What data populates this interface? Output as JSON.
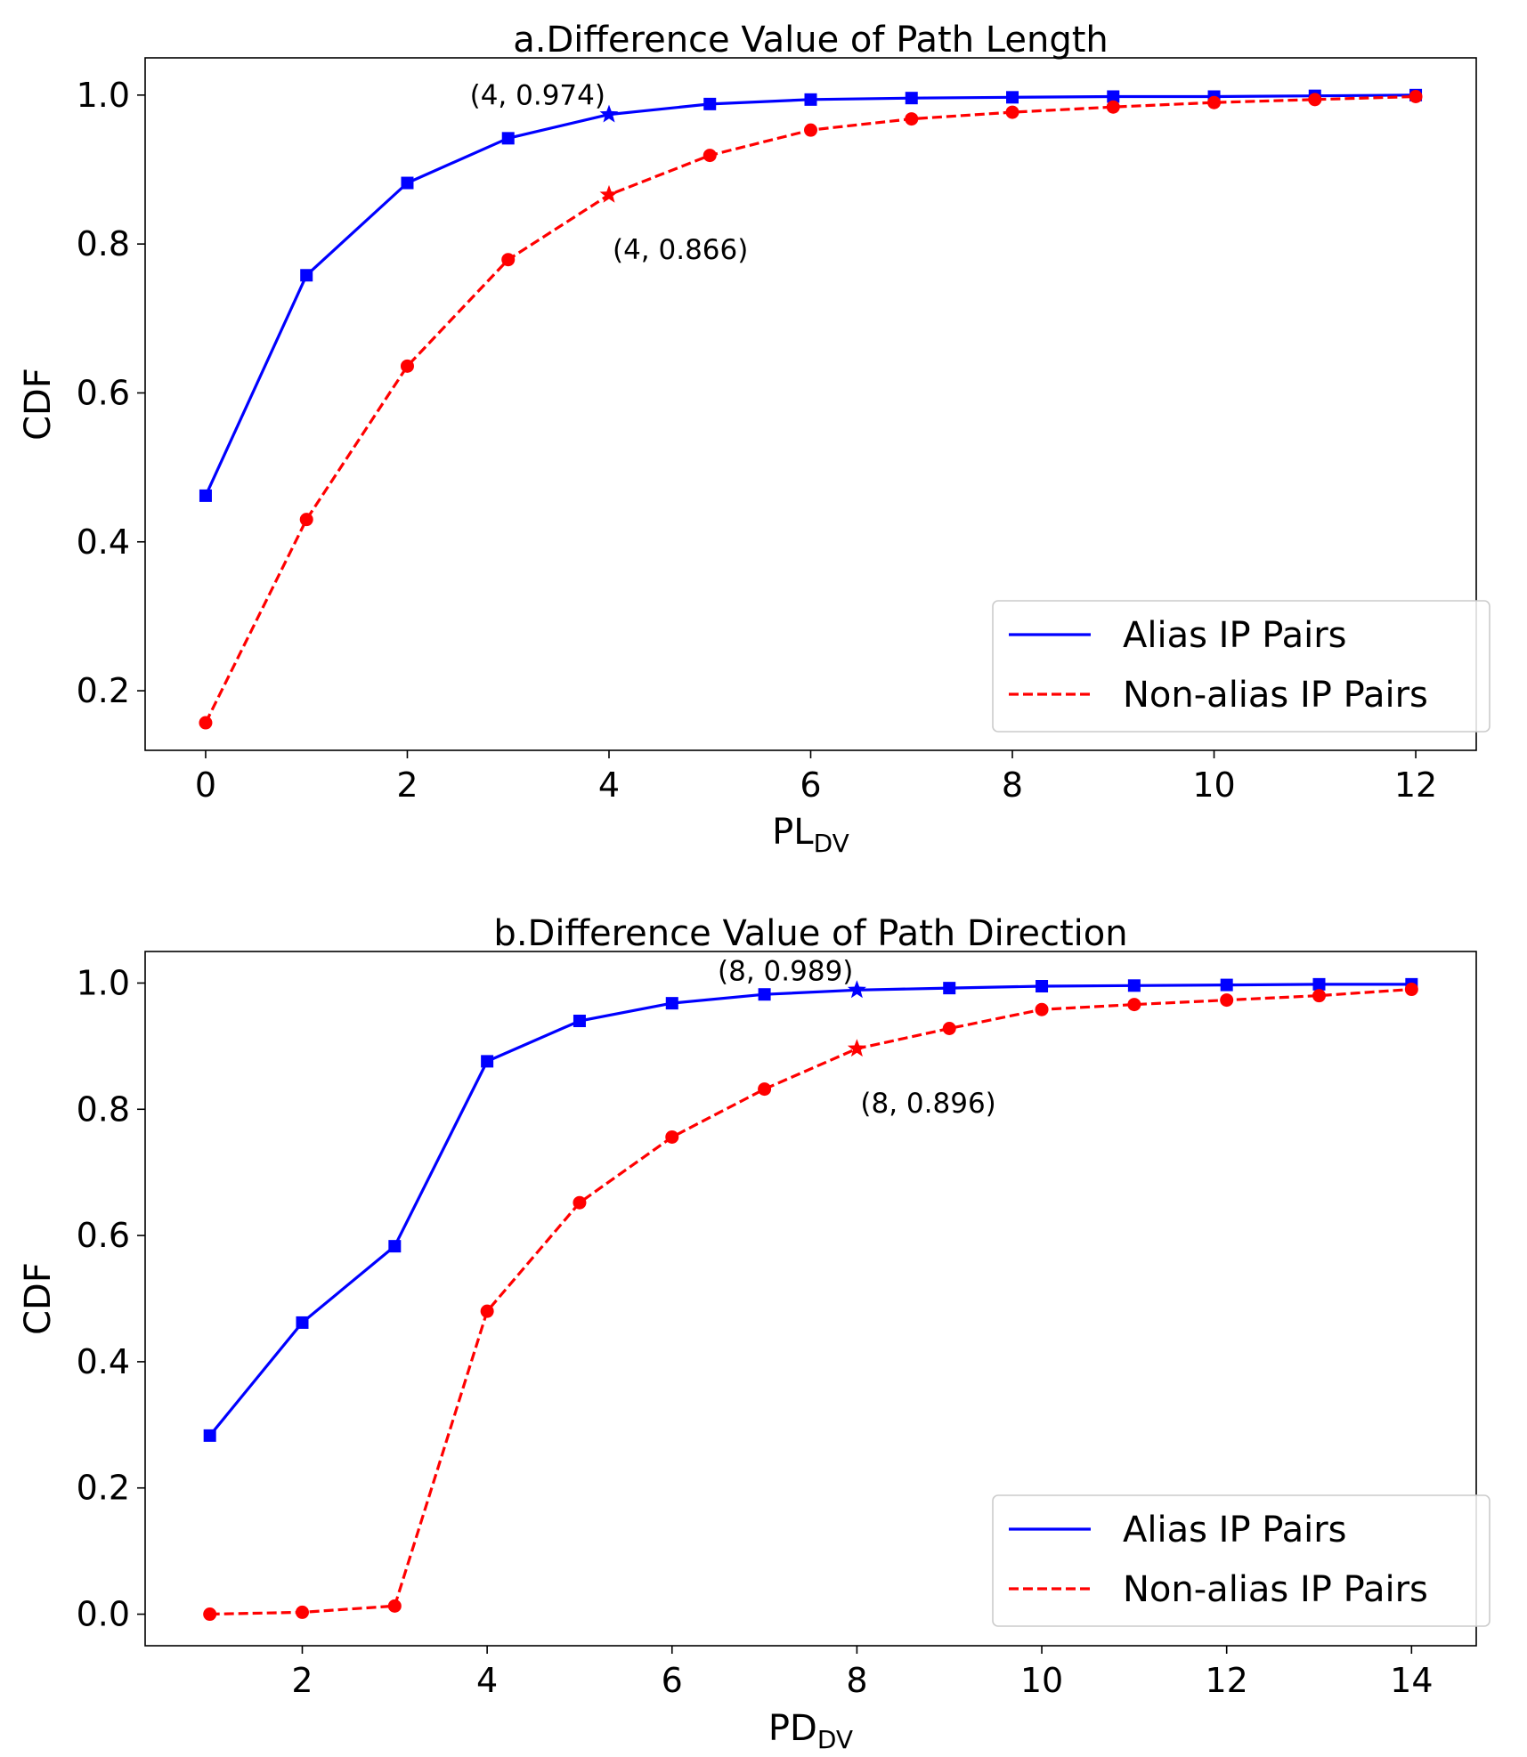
{
  "chart_data": [
    {
      "type": "line",
      "title": "a.Difference Value of Path Length",
      "xlabel": "PL",
      "xlabel_sub": "DV",
      "ylabel": "CDF",
      "xlim": [
        -0.6,
        12.6
      ],
      "ylim": [
        0.12,
        1.05
      ],
      "xticks": [
        0,
        2,
        4,
        6,
        8,
        10,
        12
      ],
      "yticks": [
        0.2,
        0.4,
        0.6,
        0.8,
        1.0
      ],
      "ytick_labels": [
        "0.2",
        "0.4",
        "0.6",
        "0.8",
        "1.0"
      ],
      "x": [
        0,
        1,
        2,
        3,
        4,
        5,
        6,
        7,
        8,
        9,
        10,
        11,
        12
      ],
      "series": [
        {
          "name": "Alias IP Pairs",
          "color": "#0000ff",
          "linestyle": "solid",
          "marker": "square",
          "values": [
            0.462,
            0.758,
            0.882,
            0.942,
            0.974,
            0.988,
            0.994,
            0.996,
            0.997,
            0.998,
            0.998,
            0.999,
            1.0
          ],
          "star_index": 4,
          "annotation": {
            "text": "(4, 0.974)",
            "position": "above-left"
          }
        },
        {
          "name": "Non-alias IP Pairs",
          "color": "#ff0000",
          "linestyle": "dashed",
          "marker": "circle",
          "values": [
            0.157,
            0.43,
            0.636,
            0.779,
            0.866,
            0.919,
            0.953,
            0.968,
            0.977,
            0.984,
            0.99,
            0.994,
            0.998
          ],
          "star_index": 4,
          "annotation": {
            "text": "(4, 0.866)",
            "position": "below-right"
          }
        }
      ],
      "legend_position": "lower-right"
    },
    {
      "type": "line",
      "title": "b.Difference Value of Path Direction",
      "xlabel": "PD",
      "xlabel_sub": "DV",
      "ylabel": "CDF",
      "xlim": [
        0.3,
        14.7
      ],
      "ylim": [
        -0.05,
        1.05
      ],
      "xticks": [
        2,
        4,
        6,
        8,
        10,
        12,
        14
      ],
      "yticks": [
        0.0,
        0.2,
        0.4,
        0.6,
        0.8,
        1.0
      ],
      "ytick_labels": [
        "0.0",
        "0.2",
        "0.4",
        "0.6",
        "0.8",
        "1.0"
      ],
      "x": [
        1,
        2,
        3,
        4,
        5,
        6,
        7,
        8,
        9,
        10,
        11,
        12,
        13,
        14
      ],
      "series": [
        {
          "name": "Alias IP Pairs",
          "color": "#0000ff",
          "linestyle": "solid",
          "marker": "square",
          "values": [
            0.283,
            0.462,
            0.583,
            0.876,
            0.94,
            0.968,
            0.982,
            0.989,
            0.992,
            0.995,
            0.996,
            0.997,
            0.998,
            0.998
          ],
          "star_index": 7,
          "annotation": {
            "text": "(8, 0.989)",
            "position": "above-left"
          }
        },
        {
          "name": "Non-alias IP Pairs",
          "color": "#ff0000",
          "linestyle": "dashed",
          "marker": "circle",
          "values": [
            0.0,
            0.003,
            0.013,
            0.48,
            0.652,
            0.756,
            0.832,
            0.896,
            0.928,
            0.958,
            0.966,
            0.973,
            0.98,
            0.99
          ],
          "star_index": 7,
          "annotation": {
            "text": "(8, 0.896)",
            "position": "below-right"
          }
        }
      ],
      "legend_position": "lower-right"
    }
  ]
}
